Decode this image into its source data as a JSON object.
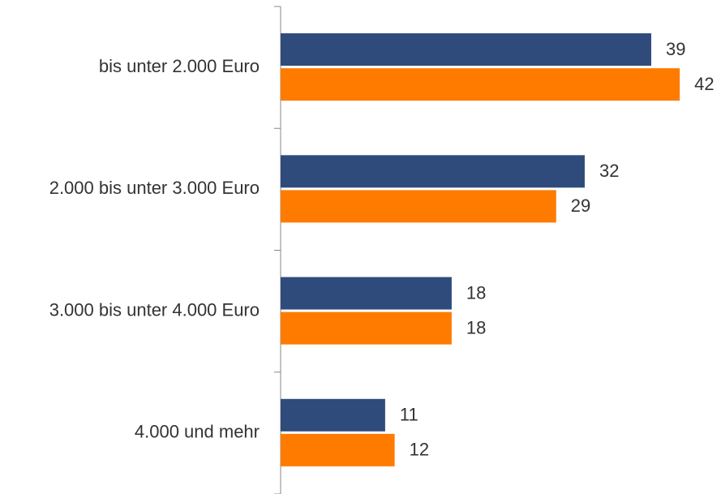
{
  "chart_data": {
    "type": "hbar",
    "categories": [
      "bis unter 2.000 Euro",
      "2.000 bis unter 3.000 Euro",
      "3.000 bis unter 4.000 Euro",
      "4.000 und mehr"
    ],
    "series": [
      {
        "color": "#2f4b7c",
        "values": [
          39,
          32,
          18,
          11
        ]
      },
      {
        "color": "#ff7b00",
        "values": [
          42,
          29,
          18,
          12
        ]
      }
    ],
    "xlim": [
      0,
      46
    ]
  }
}
